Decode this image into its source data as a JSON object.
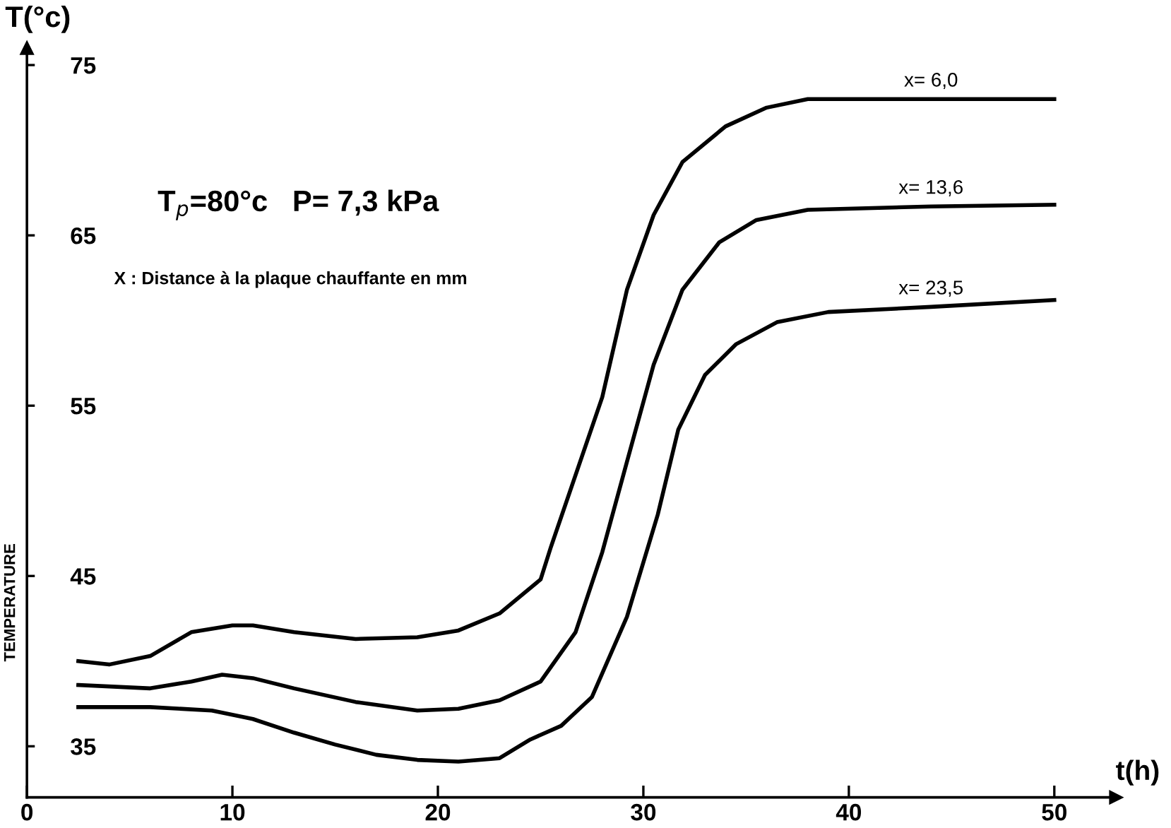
{
  "chart_data": {
    "type": "line",
    "xlabel": "t(h)",
    "ylabel": "TEMPERATURE",
    "annotations": [
      "T(°c)",
      "T$_{p}$=80°c   P= 7,3 kPa",
      "X : Distance à la plaque chauffante en mm"
    ],
    "xlim": [
      0,
      53
    ],
    "ylim": [
      32,
      76
    ],
    "xticks": [
      0,
      10,
      20,
      30,
      40,
      50
    ],
    "yticks": [
      35,
      45,
      55,
      65,
      75
    ],
    "grid": false,
    "legend": false,
    "marker": "none",
    "line_style": "solid",
    "series": [
      {
        "name": "x= 6,0",
        "color": "#000000",
        "x": [
          2.5,
          4,
          6,
          8,
          10,
          11,
          13,
          16,
          19,
          21,
          23,
          25,
          25.5,
          28,
          29.2,
          30.5,
          31.9,
          34,
          36,
          38,
          44,
          50
        ],
        "values": [
          40.0,
          39.8,
          40.3,
          41.7,
          42.1,
          42.1,
          41.7,
          41.3,
          41.4,
          41.8,
          42.8,
          44.8,
          46.7,
          55.5,
          61.8,
          66.2,
          69.3,
          71.4,
          72.5,
          73.0,
          73.0,
          73.0
        ]
      },
      {
        "name": "x= 13,6",
        "color": "#000000",
        "x": [
          2.5,
          6,
          8,
          9.5,
          11,
          13,
          16,
          19,
          21,
          23,
          25,
          26.7,
          28,
          29.2,
          30.5,
          31.9,
          33.7,
          35.5,
          38,
          44,
          50
        ],
        "values": [
          38.6,
          38.4,
          38.8,
          39.2,
          39.0,
          38.4,
          37.6,
          37.1,
          37.2,
          37.7,
          38.8,
          41.7,
          46.4,
          51.7,
          57.4,
          61.8,
          64.6,
          65.9,
          66.5,
          66.7,
          66.8
        ]
      },
      {
        "name": "x= 23,5",
        "color": "#000000",
        "x": [
          2.5,
          6,
          9,
          11,
          13,
          15,
          17,
          19,
          21,
          23,
          24.5,
          26,
          27.5,
          29.2,
          30.7,
          31.7,
          33,
          34.5,
          36.5,
          39,
          44,
          50
        ],
        "values": [
          37.3,
          37.3,
          37.1,
          36.6,
          35.8,
          35.1,
          34.5,
          34.2,
          34.1,
          34.3,
          35.4,
          36.2,
          37.9,
          42.6,
          48.6,
          53.6,
          56.8,
          58.6,
          59.9,
          60.5,
          60.8,
          61.2
        ]
      }
    ]
  }
}
